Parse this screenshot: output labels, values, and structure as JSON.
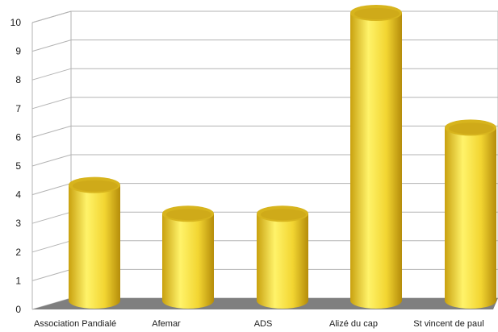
{
  "chart_data": {
    "type": "bar",
    "style": "3d-cylinder",
    "categories": [
      "Association Pandialé",
      "Afemar",
      "ADS",
      "Alizé du cap",
      "St vincent de paul"
    ],
    "values": [
      4,
      3,
      3,
      10,
      6
    ],
    "ylim": [
      0,
      10
    ],
    "yticks": [
      0,
      1,
      2,
      3,
      4,
      5,
      6,
      7,
      8,
      9,
      10
    ],
    "grid": true,
    "legend": "none",
    "colors": {
      "bar_light": "#fff36a",
      "bar_mid": "#f2d531",
      "bar_dark": "#b58c0a",
      "bar_top": "#d7b41d",
      "floor": "#7f7f7f",
      "grid": "#b3b3b3"
    }
  }
}
